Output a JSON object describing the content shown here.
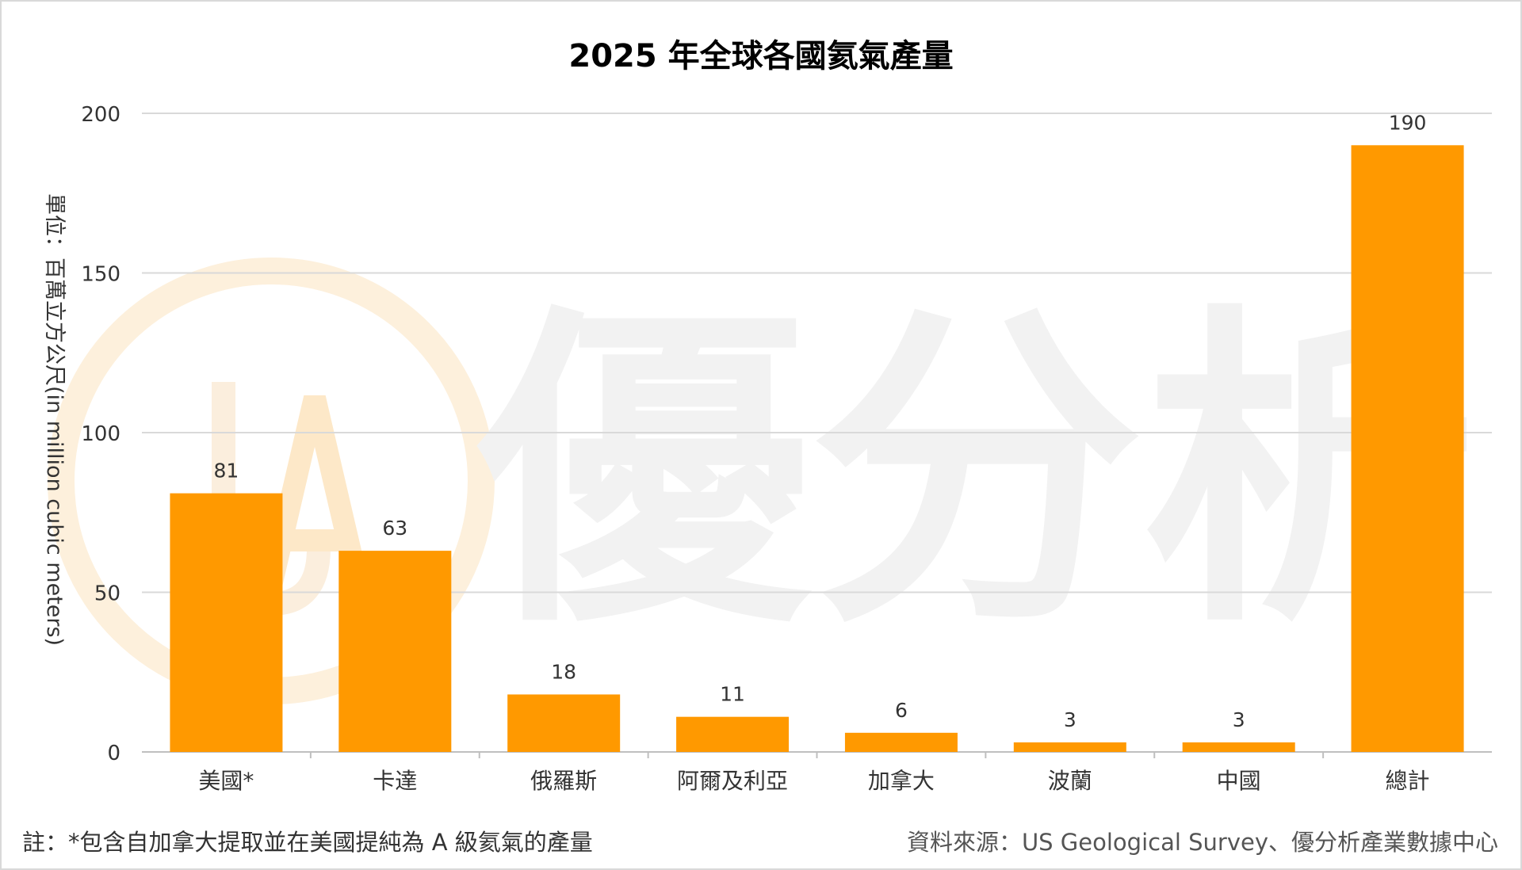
{
  "chart_data": {
    "type": "bar",
    "title": "2025 年全球各國氦氣產量",
    "ylabel": "單位：百萬立方公尺(in million cubic meters)",
    "xlabel": "",
    "categories": [
      "美國*",
      "卡達",
      "俄羅斯",
      "阿爾及利亞",
      "加拿大",
      "波蘭",
      "中國",
      "總計"
    ],
    "values": [
      81,
      63,
      18,
      11,
      6,
      3,
      3,
      190
    ],
    "data_labels": [
      "81",
      "63",
      "18",
      "11",
      "6",
      "3",
      "3",
      "190"
    ],
    "ylim": [
      0,
      200
    ],
    "yticks": [
      0,
      50,
      100,
      150,
      200
    ],
    "ytick_labels": [
      "0",
      "50",
      "100",
      "150",
      "200"
    ],
    "grid": true,
    "legend": "none",
    "bar_color": "#FF9900",
    "watermark": "優分析"
  },
  "footer": {
    "note": "註：*包含自加拿大提取並在美國提純為 A 級氦氣的產量",
    "source": "資料來源：US Geological Survey、優分析產業數據中心"
  },
  "colors": {
    "bar": "#FF9900",
    "grid": "#d9d9d9",
    "text": "#333333"
  }
}
